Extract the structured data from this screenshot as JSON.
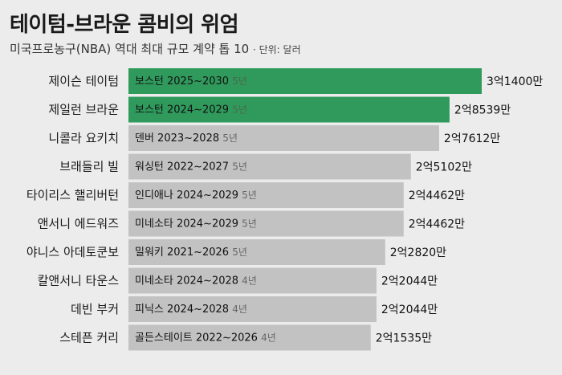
{
  "header": {
    "title": "테이텀-브라운 콤비의 위엄",
    "subtitle": "미국프로농구(NBA) 역대 최대 규모 계약 톱 10",
    "unit": "· 단위: 달러"
  },
  "colors": {
    "highlight": "#2f9a5c",
    "normal": "#c2c2c2",
    "background": "#ececec"
  },
  "chart_data": {
    "type": "bar",
    "orientation": "horizontal",
    "categories": [
      "제이슨 테이텀",
      "제일런 브라운",
      "니콜라 요키치",
      "브래들리 빌",
      "타이리스 핼리버턴",
      "앤서니 에드워즈",
      "야니스 아데토쿤보",
      "칼앤서니 타운스",
      "데빈 부커",
      "스테픈 커리"
    ],
    "values": [
      314000000,
      285390000,
      276120000,
      251020000,
      244620000,
      244620000,
      228200000,
      220440000,
      220440000,
      215350000
    ],
    "value_labels": [
      "3억1400만",
      "2억8539만",
      "2억7612만",
      "2억5102만",
      "2억4462만",
      "2억4462만",
      "2억2820만",
      "2억2044만",
      "2억2044만",
      "2억1535만"
    ],
    "contracts": [
      "보스턴 2025~2030",
      "보스턴 2024~2029",
      "덴버 2023~2028",
      "워싱턴 2022~2027",
      "인디애나 2024~2029",
      "미네소타 2024~2029",
      "밀워키 2021~2026",
      "미네소타 2024~2028",
      "피닉스 2024~2028",
      "골든스테이트 2022~2026"
    ],
    "durations": [
      "5년",
      "5년",
      "5년",
      "5년",
      "5년",
      "5년",
      "5년",
      "4년",
      "4년",
      "4년"
    ],
    "highlighted": [
      true,
      true,
      false,
      false,
      false,
      false,
      false,
      false,
      false,
      false
    ]
  }
}
